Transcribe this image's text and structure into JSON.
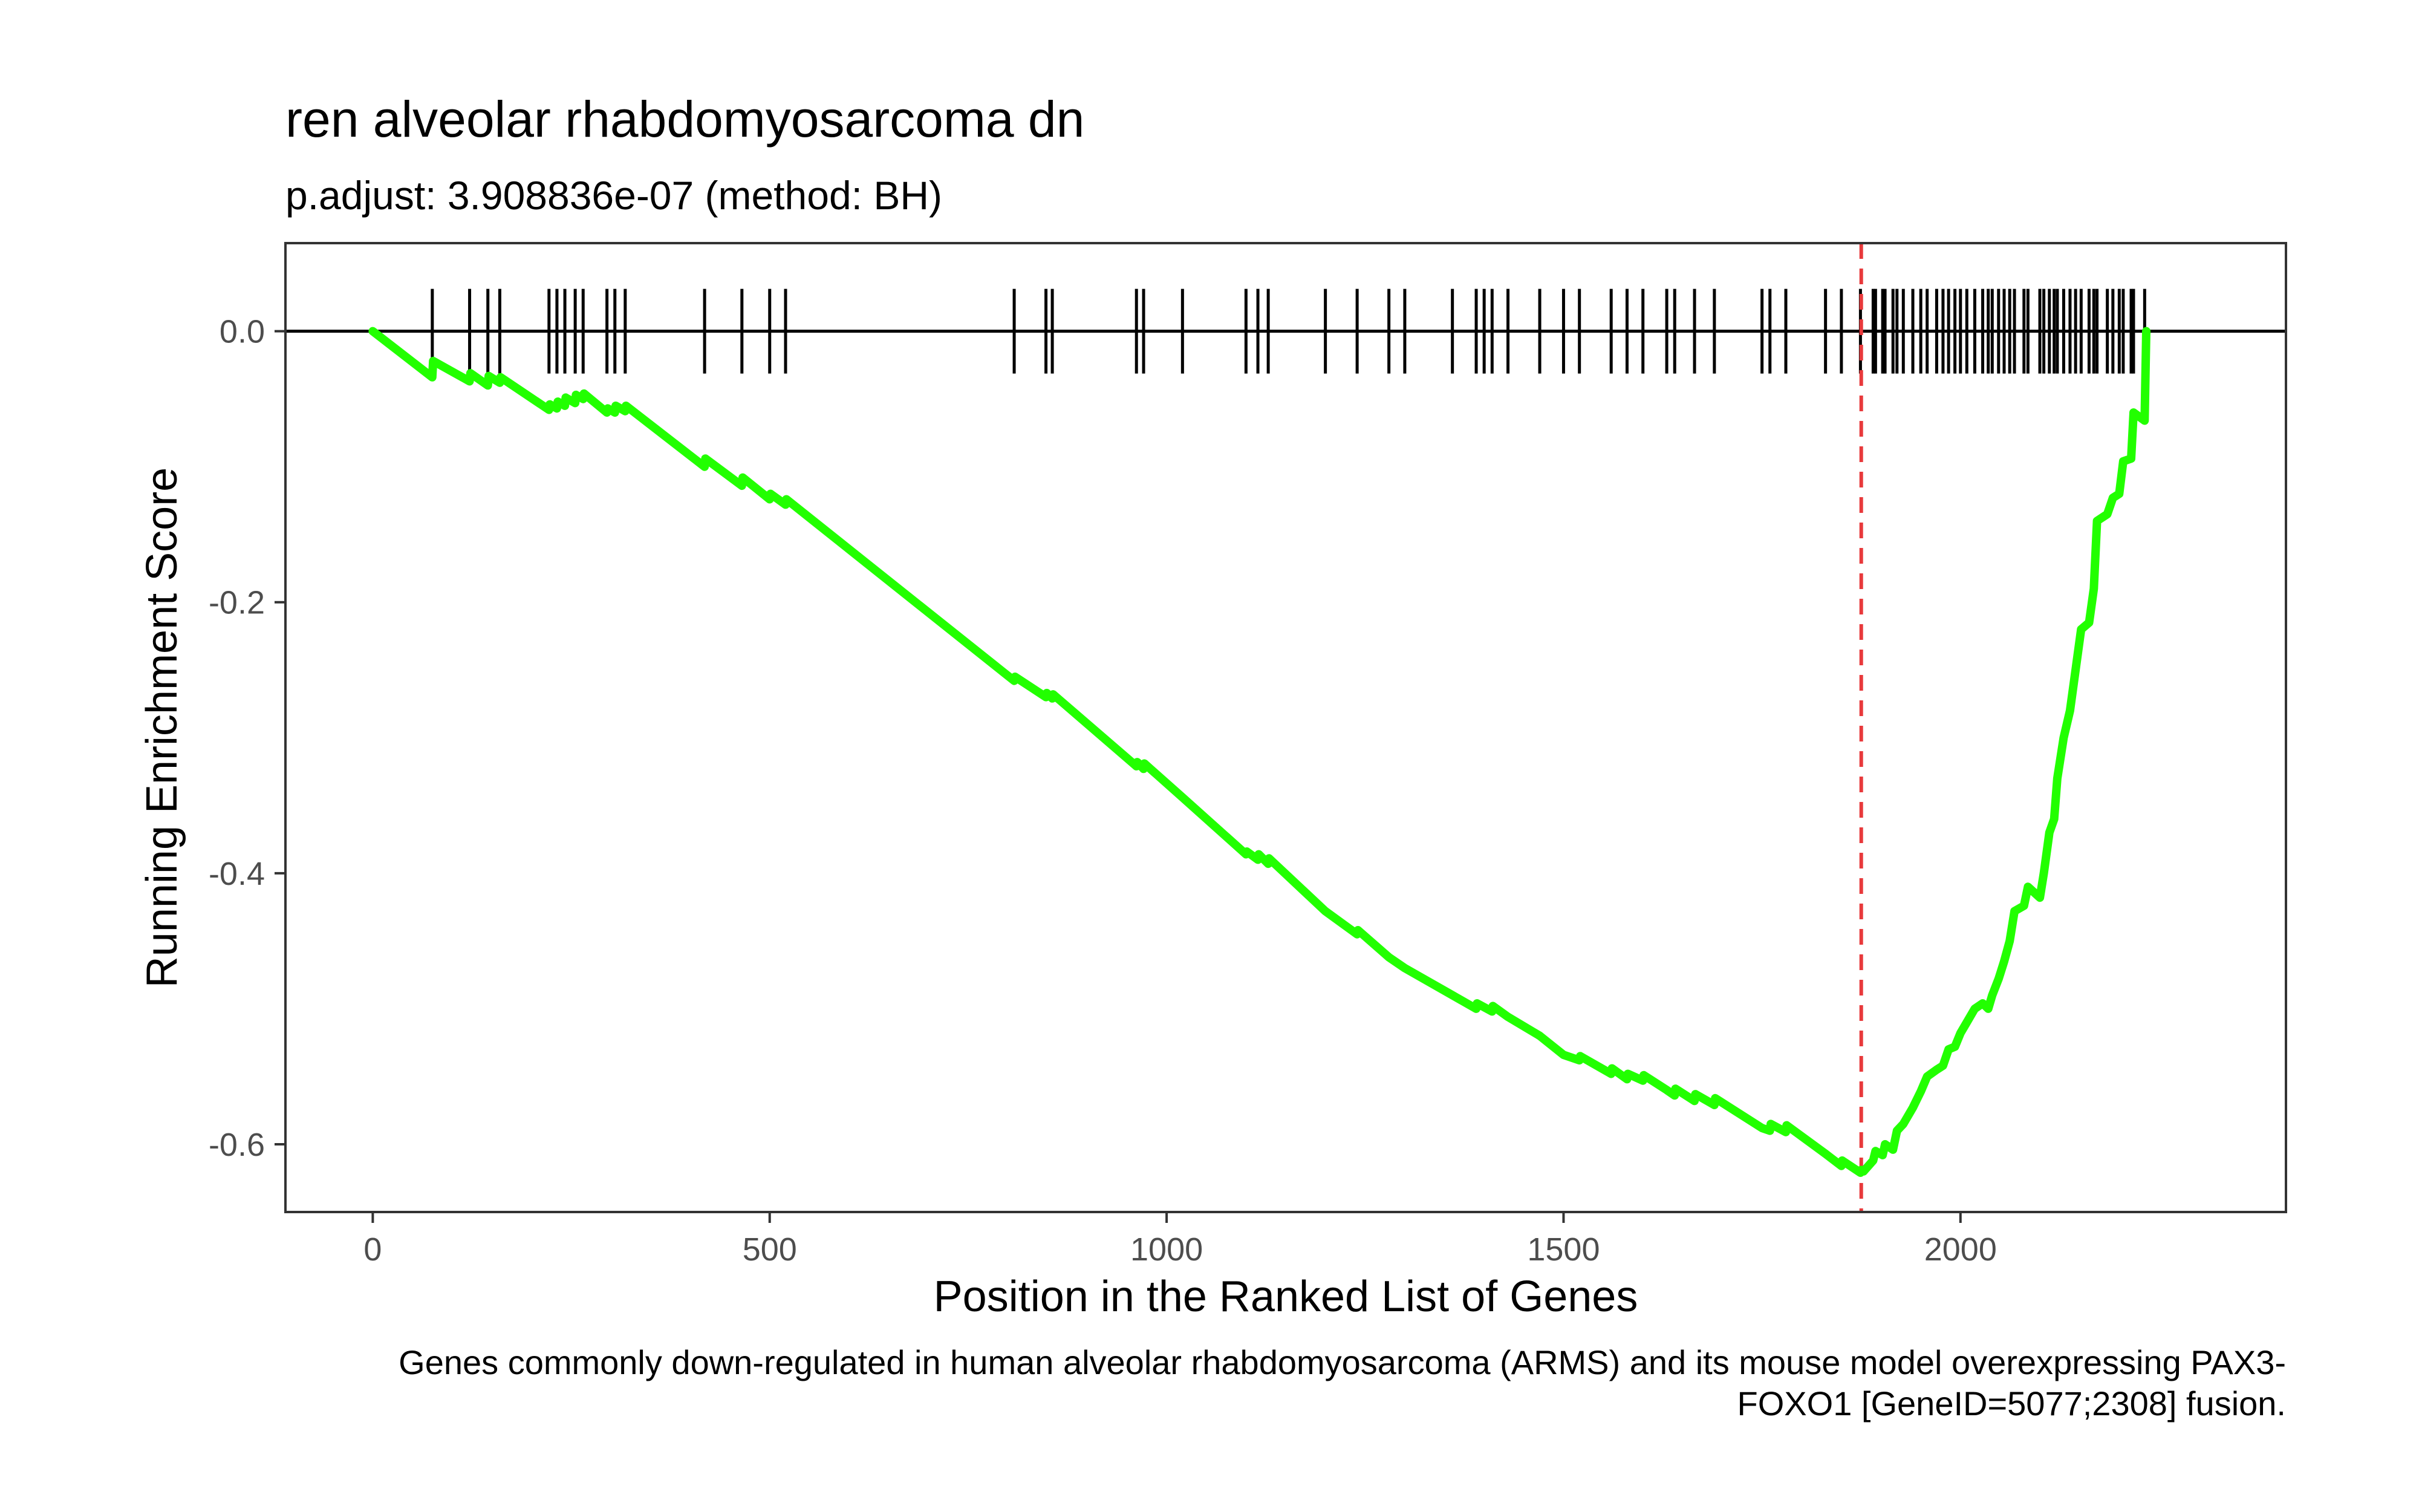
{
  "chart_data": {
    "type": "line",
    "title": "ren alveolar rhabdomyosarcoma dn",
    "subtitle": "p.adjust: 3.908836e-07 (method: BH)",
    "xlabel": "Position in the Ranked List of Genes",
    "ylabel": "Running Enrichment Score",
    "caption": [
      "Genes commonly down-regulated in human alveolar rhabdomyosarcoma (ARMS) and its mouse model overexpressing PAX3-",
      "FOXO1 [GeneID=5077;2308] fusion."
    ],
    "xlim": [
      -110,
      2410
    ],
    "ylim": [
      -0.65,
      0.065
    ],
    "x_ticks": [
      0,
      500,
      1000,
      1500,
      2000
    ],
    "y_ticks": [
      0.0,
      -0.2,
      -0.4,
      -0.6
    ],
    "y_tick_labels": [
      "0.0",
      "-0.2",
      "-0.4",
      "-0.6"
    ],
    "x_tick_labels": [
      "0",
      "500",
      "1000",
      "1500",
      "2000"
    ],
    "zero_line": 0.0,
    "peak_position": 1875,
    "peak_color": "#e8393b",
    "line_color": "#22ff00",
    "grid": false,
    "series": [
      {
        "values": [
          [
            0,
            0.0
          ],
          [
            75,
            -0.034
          ],
          [
            76,
            -0.022
          ],
          [
            122,
            -0.037
          ],
          [
            123,
            -0.031
          ],
          [
            145,
            -0.04
          ],
          [
            146,
            -0.033
          ],
          [
            160,
            -0.038
          ],
          [
            161,
            -0.034
          ],
          [
            222,
            -0.058
          ],
          [
            223,
            -0.054
          ],
          [
            232,
            -0.057
          ],
          [
            233,
            -0.052
          ],
          [
            242,
            -0.055
          ],
          [
            243,
            -0.049
          ],
          [
            255,
            -0.053
          ],
          [
            256,
            -0.047
          ],
          [
            265,
            -0.05
          ],
          [
            266,
            -0.046
          ],
          [
            295,
            -0.06
          ],
          [
            296,
            -0.057
          ],
          [
            305,
            -0.06
          ],
          [
            306,
            -0.055
          ],
          [
            318,
            -0.059
          ],
          [
            319,
            -0.055
          ],
          [
            418,
            -0.1
          ],
          [
            419,
            -0.094
          ],
          [
            465,
            -0.114
          ],
          [
            466,
            -0.108
          ],
          [
            500,
            -0.124
          ],
          [
            501,
            -0.12
          ],
          [
            520,
            -0.128
          ],
          [
            521,
            -0.124
          ],
          [
            808,
            -0.258
          ],
          [
            809,
            -0.255
          ],
          [
            848,
            -0.27
          ],
          [
            849,
            -0.267
          ],
          [
            856,
            -0.271
          ],
          [
            857,
            -0.268
          ],
          [
            962,
            -0.321
          ],
          [
            963,
            -0.318
          ],
          [
            971,
            -0.323
          ],
          [
            972,
            -0.319
          ],
          [
            1020,
            -0.344
          ],
          [
            1100,
            -0.386
          ],
          [
            1101,
            -0.384
          ],
          [
            1115,
            -0.39
          ],
          [
            1116,
            -0.386
          ],
          [
            1128,
            -0.393
          ],
          [
            1129,
            -0.389
          ],
          [
            1200,
            -0.428
          ],
          [
            1240,
            -0.445
          ],
          [
            1241,
            -0.442
          ],
          [
            1280,
            -0.462
          ],
          [
            1300,
            -0.47
          ],
          [
            1360,
            -0.49
          ],
          [
            1390,
            -0.5
          ],
          [
            1391,
            -0.496
          ],
          [
            1410,
            -0.502
          ],
          [
            1411,
            -0.498
          ],
          [
            1430,
            -0.506
          ],
          [
            1470,
            -0.52
          ],
          [
            1500,
            -0.534
          ],
          [
            1520,
            -0.538
          ],
          [
            1521,
            -0.535
          ],
          [
            1560,
            -0.548
          ],
          [
            1561,
            -0.544
          ],
          [
            1580,
            -0.552
          ],
          [
            1581,
            -0.548
          ],
          [
            1600,
            -0.553
          ],
          [
            1601,
            -0.549
          ],
          [
            1630,
            -0.56
          ],
          [
            1640,
            -0.564
          ],
          [
            1641,
            -0.559
          ],
          [
            1665,
            -0.568
          ],
          [
            1666,
            -0.563
          ],
          [
            1690,
            -0.571
          ],
          [
            1691,
            -0.566
          ],
          [
            1750,
            -0.588
          ],
          [
            1760,
            -0.59
          ],
          [
            1761,
            -0.585
          ],
          [
            1780,
            -0.591
          ],
          [
            1781,
            -0.586
          ],
          [
            1830,
            -0.607
          ],
          [
            1850,
            -0.616
          ],
          [
            1851,
            -0.612
          ],
          [
            1874,
            -0.621
          ],
          [
            1875,
            -0.619
          ],
          [
            1878,
            -0.62
          ],
          [
            1890,
            -0.612
          ],
          [
            1893,
            -0.605
          ],
          [
            1902,
            -0.608
          ],
          [
            1905,
            -0.6
          ],
          [
            1915,
            -0.604
          ],
          [
            1920,
            -0.59
          ],
          [
            1928,
            -0.585
          ],
          [
            1940,
            -0.573
          ],
          [
            1950,
            -0.561
          ],
          [
            1958,
            -0.55
          ],
          [
            1970,
            -0.545
          ],
          [
            1978,
            -0.542
          ],
          [
            1985,
            -0.53
          ],
          [
            1993,
            -0.528
          ],
          [
            2000,
            -0.518
          ],
          [
            2008,
            -0.51
          ],
          [
            2018,
            -0.5
          ],
          [
            2028,
            -0.496
          ],
          [
            2035,
            -0.5
          ],
          [
            2040,
            -0.49
          ],
          [
            2048,
            -0.478
          ],
          [
            2055,
            -0.465
          ],
          [
            2062,
            -0.45
          ],
          [
            2068,
            -0.428
          ],
          [
            2080,
            -0.424
          ],
          [
            2085,
            -0.41
          ],
          [
            2100,
            -0.418
          ],
          [
            2105,
            -0.4
          ],
          [
            2112,
            -0.37
          ],
          [
            2118,
            -0.36
          ],
          [
            2122,
            -0.33
          ],
          [
            2130,
            -0.3
          ],
          [
            2138,
            -0.28
          ],
          [
            2145,
            -0.25
          ],
          [
            2152,
            -0.22
          ],
          [
            2162,
            -0.215
          ],
          [
            2168,
            -0.19
          ],
          [
            2172,
            -0.14
          ],
          [
            2185,
            -0.135
          ],
          [
            2192,
            -0.123
          ],
          [
            2200,
            -0.12
          ],
          [
            2205,
            -0.096
          ],
          [
            2215,
            -0.094
          ],
          [
            2218,
            -0.06
          ],
          [
            2232,
            -0.066
          ],
          [
            2234,
            0.0
          ]
        ]
      }
    ],
    "hit_positions": [
      75,
      122,
      145,
      160,
      222,
      232,
      242,
      255,
      265,
      295,
      305,
      318,
      418,
      465,
      500,
      520,
      808,
      848,
      856,
      962,
      971,
      1020,
      1100,
      1115,
      1128,
      1200,
      1240,
      1280,
      1300,
      1360,
      1390,
      1400,
      1410,
      1430,
      1470,
      1500,
      1520,
      1560,
      1580,
      1600,
      1630,
      1640,
      1665,
      1690,
      1750,
      1760,
      1780,
      1830,
      1850,
      1874,
      1890,
      1893,
      1902,
      1905,
      1915,
      1920,
      1928,
      1940,
      1950,
      1958,
      1970,
      1978,
      1985,
      1993,
      2000,
      2008,
      2018,
      2028,
      2035,
      2040,
      2048,
      2055,
      2062,
      2068,
      2080,
      2085,
      2100,
      2105,
      2112,
      2118,
      2122,
      2130,
      2138,
      2145,
      2152,
      2162,
      2168,
      2172,
      2185,
      2192,
      2200,
      2205,
      2215,
      2218,
      2232
    ]
  }
}
